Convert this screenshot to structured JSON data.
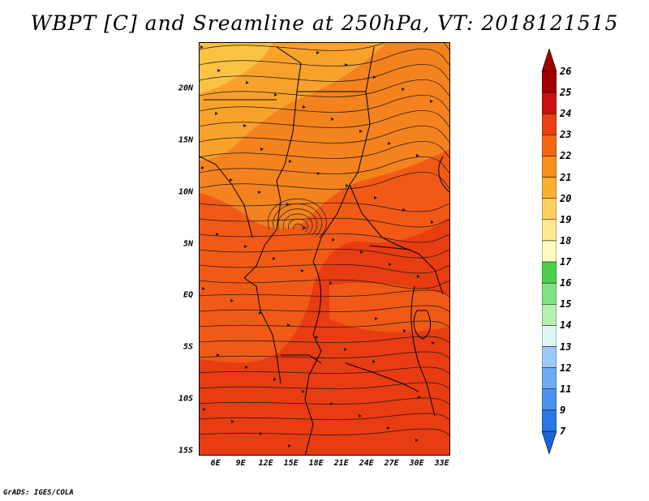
{
  "title": "WBPT [C] and Sreamline at 250hPa, VT: 2018121515",
  "credit": "GrADS: IGES/COLA",
  "map": {
    "extent_lon": [
      4,
      34
    ],
    "extent_lat": [
      -15.5,
      24.5
    ],
    "lat_ticks": [
      {
        "value": 20,
        "label": "20N"
      },
      {
        "value": 15,
        "label": "15N"
      },
      {
        "value": 10,
        "label": "10N"
      },
      {
        "value": 5,
        "label": "5N"
      },
      {
        "value": 0,
        "label": "EQ"
      },
      {
        "value": -5,
        "label": "5S"
      },
      {
        "value": -10,
        "label": "10S"
      },
      {
        "value": -15,
        "label": "15S"
      }
    ],
    "lon_ticks": [
      {
        "value": 6,
        "label": "6E"
      },
      {
        "value": 9,
        "label": "9E"
      },
      {
        "value": 12,
        "label": "12E"
      },
      {
        "value": 15,
        "label": "15E"
      },
      {
        "value": 18,
        "label": "18E"
      },
      {
        "value": 21,
        "label": "21E"
      },
      {
        "value": 24,
        "label": "24E"
      },
      {
        "value": 27,
        "label": "27E"
      },
      {
        "value": 30,
        "label": "30E"
      },
      {
        "value": 33,
        "label": "33E"
      }
    ]
  },
  "colorbar": {
    "levels": [
      "7",
      "9",
      "11",
      "12",
      "13",
      "14",
      "15",
      "16",
      "17",
      "18",
      "19",
      "20",
      "21",
      "22",
      "23",
      "24",
      "25",
      "26"
    ],
    "colors": [
      "#1a64d8",
      "#2a78e8",
      "#4a92f0",
      "#6eaaf4",
      "#9ccaf6",
      "#dcf6f6",
      "#b4f0b0",
      "#82e282",
      "#4cd04c",
      "#fffac0",
      "#ffe890",
      "#ffd060",
      "#f8b030",
      "#f89018",
      "#f06814",
      "#e84010",
      "#c81010",
      "#a00000"
    ],
    "top_color": "#a00000",
    "bottom_color": "#1a64d8"
  },
  "fields": {
    "dominant_value_range": "20-24",
    "band_24_color": "#e83c12",
    "band_23_color": "#f05a16",
    "band_22_color": "#f4821e",
    "band_21_color": "#f8a22c"
  }
}
